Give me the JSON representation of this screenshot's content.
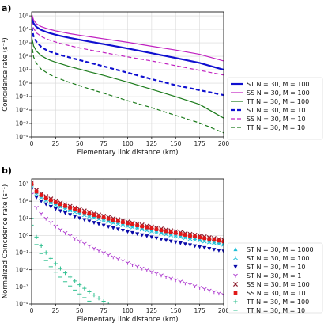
{
  "chart_data": [
    {
      "panel_label": "a)",
      "type": "line",
      "xlabel": "Elementary link distance (km)",
      "ylabel": "Coincidence rate (s⁻¹)",
      "xlim": [
        0,
        200
      ],
      "ylim_log10": [
        -4,
        5.3
      ],
      "xticks": [
        "0",
        "25",
        "50",
        "75",
        "100",
        "125",
        "150",
        "175",
        "200"
      ],
      "yticks": [
        "10⁻⁴",
        "10⁻³",
        "10⁻²",
        "10⁻¹",
        "10⁰",
        "10¹",
        "10²",
        "10³",
        "10⁴",
        "10⁵"
      ],
      "grid": true,
      "legend_position": "outside-right",
      "x": [
        0,
        2,
        5,
        10,
        15,
        20,
        25,
        30,
        40,
        50,
        60,
        75,
        100,
        125,
        150,
        175,
        200
      ],
      "series": [
        {
          "name": "ST N = 30, M = 100",
          "color": "#1010d0",
          "style": "solid",
          "width": 2.2,
          "values": [
            80000,
            28000,
            15000,
            9000,
            6500,
            5000,
            4000,
            3300,
            2300,
            1700,
            1250,
            800,
            380,
            170,
            75,
            32,
            10
          ]
        },
        {
          "name": "SS N = 30, M = 100",
          "color": "#c020c0",
          "style": "solid",
          "width": 1.2,
          "values": [
            150000,
            50000,
            26000,
            16000,
            12000,
            9500,
            7800,
            6600,
            4800,
            3700,
            2900,
            2000,
            1100,
            560,
            290,
            140,
            45
          ]
        },
        {
          "name": "TT N = 30, M = 100",
          "color": "#1a7a1a",
          "style": "solid",
          "width": 1.2,
          "values": [
            3000,
            600,
            240,
            110,
            70,
            48,
            36,
            28,
            17,
            11,
            7,
            3.8,
            1.2,
            0.35,
            0.1,
            0.026,
            0.0025
          ]
        },
        {
          "name": "ST N = 30, M = 10",
          "color": "#1010d0",
          "style": "dashed",
          "width": 2.2,
          "values": [
            15000,
            3000,
            1200,
            500,
            300,
            210,
            160,
            125,
            80,
            52,
            34,
            18,
            6,
            2,
            0.7,
            0.3,
            0.13
          ]
        },
        {
          "name": "SS N = 30, M = 10",
          "color": "#c020c0",
          "style": "dashed",
          "width": 1.2,
          "values": [
            40000,
            12000,
            5500,
            3000,
            2000,
            1500,
            1150,
            900,
            600,
            420,
            300,
            190,
            90,
            45,
            20,
            9,
            4
          ]
        },
        {
          "name": "TT N = 30, M = 10",
          "color": "#1a7a1a",
          "style": "dashed",
          "width": 1.2,
          "values": [
            1000,
            90,
            30,
            11,
            6.5,
            4,
            2.8,
            2,
            1.1,
            0.65,
            0.38,
            0.18,
            0.05,
            0.015,
            0.004,
            0.0011,
            0.0002
          ]
        }
      ]
    },
    {
      "panel_label": "b)",
      "type": "scatter",
      "xlabel": "Elementary link distance (km)",
      "ylabel": "Normalized Coincidence rate (s⁻¹)",
      "xlim": [
        0,
        200
      ],
      "ylim_log10": [
        -4,
        3.3
      ],
      "xticks": [
        "0",
        "25",
        "50",
        "75",
        "100",
        "125",
        "150",
        "175",
        "200"
      ],
      "yticks": [
        "10⁻⁴",
        "10⁻³",
        "10⁻²",
        "10⁻¹",
        "10⁰",
        "10¹",
        "10²",
        "10³"
      ],
      "grid": true,
      "legend_position": "outside-right",
      "series": [
        {
          "name": "ST N = 30, M = 1000",
          "color": "#22c0d8",
          "marker": "triangle-up",
          "y0": 900,
          "y200": 0.35
        },
        {
          "name": "ST N = 30, M = 100",
          "color": "#22c0d8",
          "marker": "tri-up",
          "y0": 700,
          "y200": 0.28
        },
        {
          "name": "ST N = 30, M = 10",
          "color": "#0a0aa8",
          "marker": "triangle-down",
          "y0": 500,
          "y200": 0.12
        },
        {
          "name": "ST N = 30, M = 1",
          "color": "#b040d0",
          "marker": "tri-down",
          "y0": 250,
          "y200": 0.00035
        },
        {
          "name": "SS N = 30, M = 100",
          "color": "#8b1a2a",
          "marker": "x",
          "y0": 1200,
          "y200": 0.55
        },
        {
          "name": "SS N = 30, M = 10",
          "color": "#e01818",
          "marker": "square",
          "y0": 1000,
          "y200": 0.45
        },
        {
          "name": "TT N = 30, M = 100",
          "color": "#30c090",
          "marker": "plus",
          "y0": 10,
          "y200": 5e-08
        },
        {
          "name": "TT N = 30, M = 10",
          "color": "#30c090",
          "marker": "tri-left",
          "y0": 4,
          "y200": 1e-08
        }
      ]
    }
  ]
}
